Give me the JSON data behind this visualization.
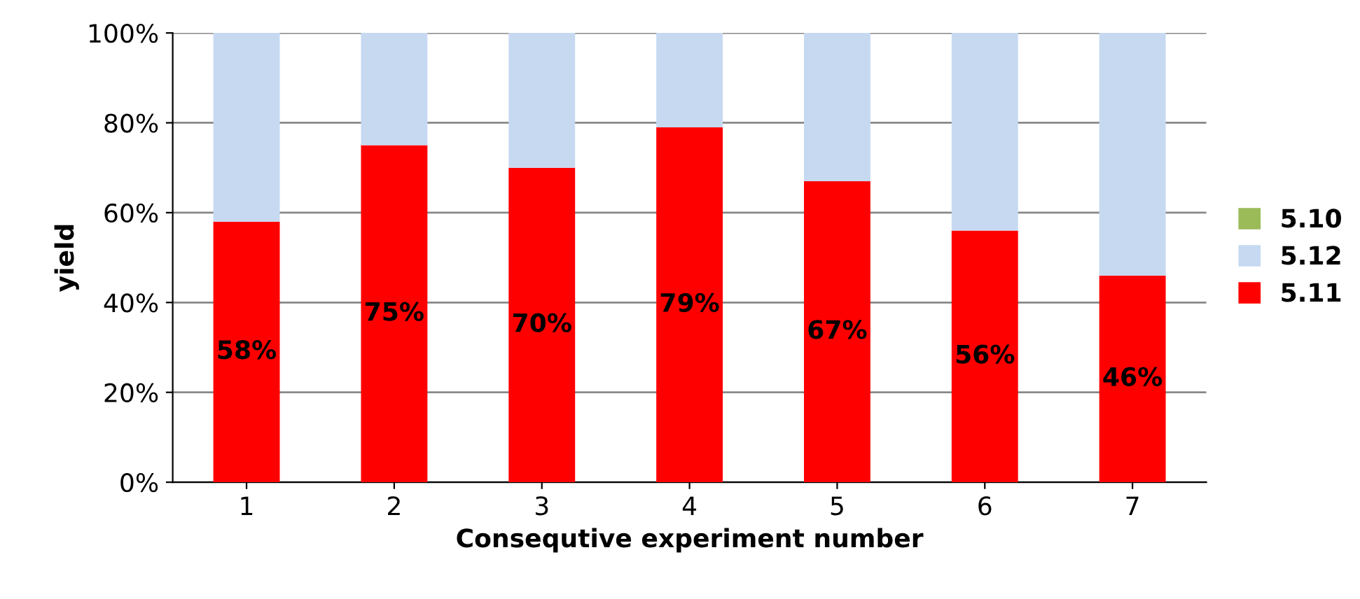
{
  "chart_data": {
    "type": "bar",
    "stacked": true,
    "xlabel": "Consequtive experiment number",
    "ylabel": "yield",
    "categories": [
      "1",
      "2",
      "3",
      "4",
      "5",
      "6",
      "7"
    ],
    "series": [
      {
        "name": "5.11",
        "color": "#ff0000",
        "values": [
          58,
          75,
          70,
          79,
          67,
          56,
          46
        ],
        "value_labels": [
          "58%",
          "75%",
          "70%",
          "79%",
          "67%",
          "56%",
          "46%"
        ]
      },
      {
        "name": "5.12",
        "color": "#c6d9f1",
        "values": [
          42,
          25,
          30,
          21,
          33,
          44,
          54
        ]
      },
      {
        "name": "5.10",
        "color": "#9bbb59",
        "values": [
          0,
          0,
          0,
          0,
          0,
          0,
          0
        ]
      }
    ],
    "ylim": [
      0,
      100
    ],
    "yticks": [
      {
        "value": 0,
        "label": "0%"
      },
      {
        "value": 20,
        "label": "20%"
      },
      {
        "value": 40,
        "label": "40%"
      },
      {
        "value": 60,
        "label": "60%"
      },
      {
        "value": 80,
        "label": "80%"
      },
      {
        "value": 100,
        "label": "100%"
      }
    ],
    "grid": "y",
    "legend": "right"
  }
}
